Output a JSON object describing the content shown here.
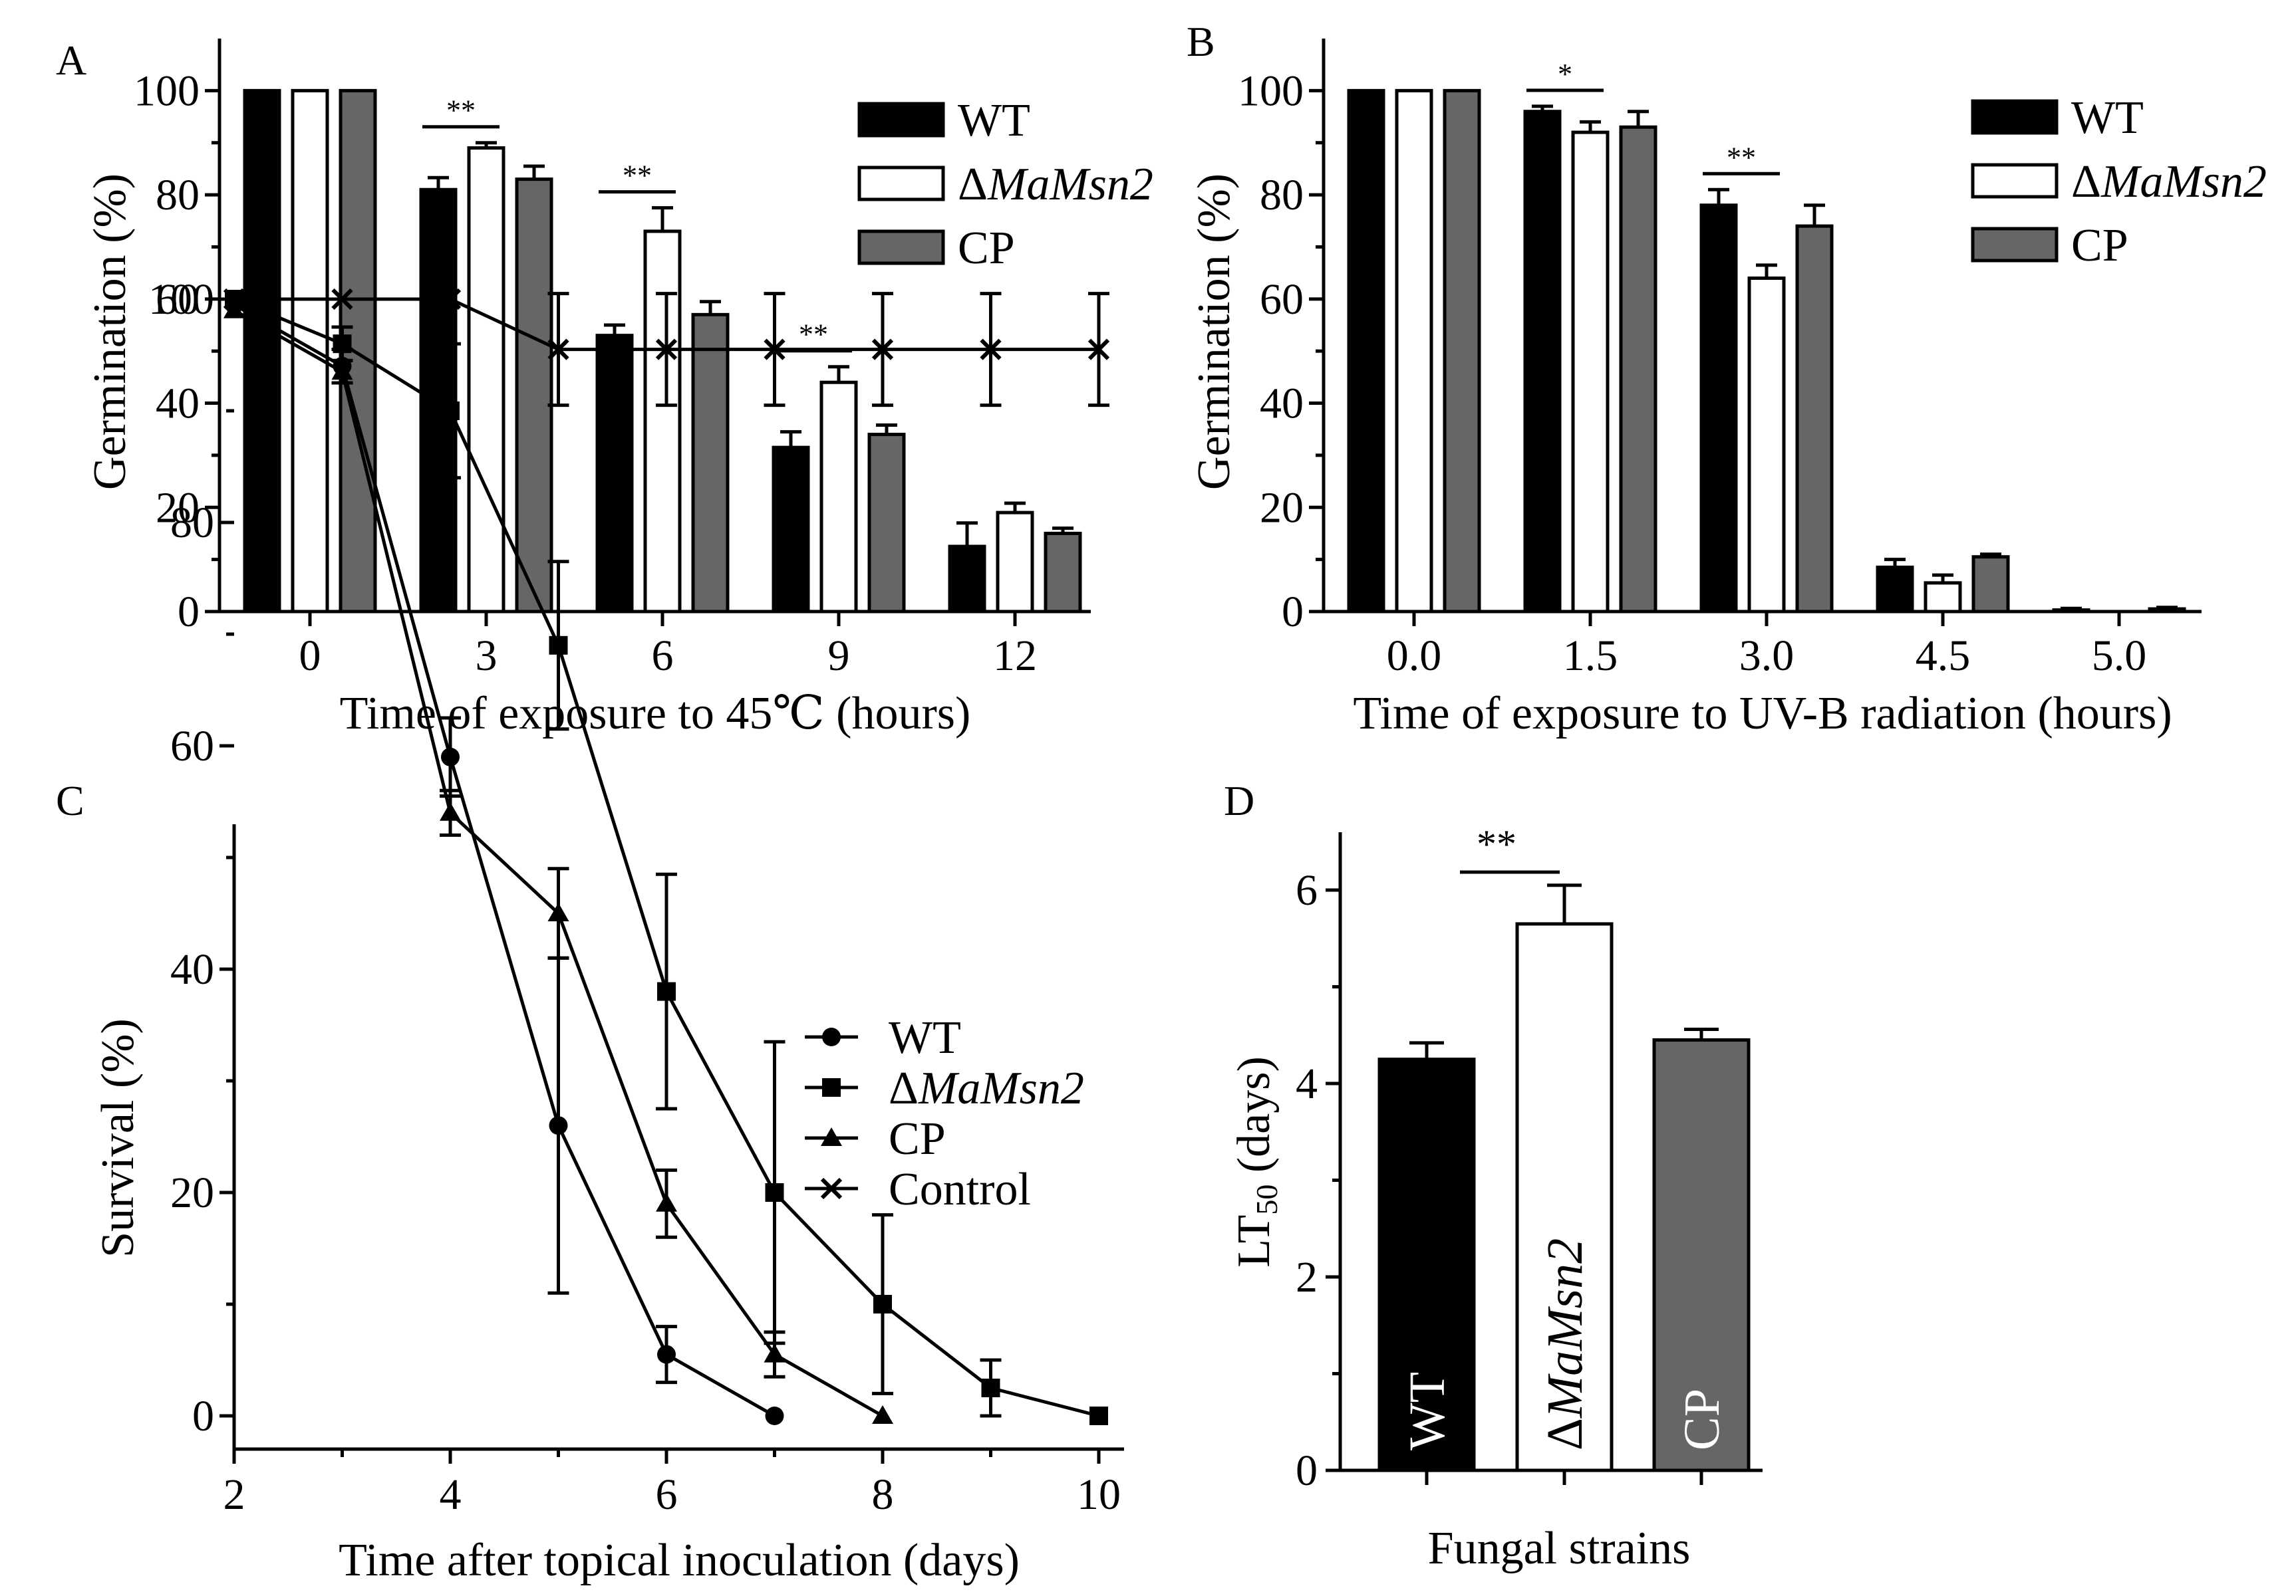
{
  "colors": {
    "wt": "#000000",
    "mutant": "#ffffff",
    "cp": "#666666",
    "axis": "#000000"
  },
  "chart_data": [
    {
      "panel": "A",
      "type": "bar",
      "xlabel": "Time of exposure to 45℃ (hours)",
      "ylabel": "Germination (%)",
      "categories": [
        "0",
        "3",
        "6",
        "9",
        "12"
      ],
      "ylim": [
        0,
        110
      ],
      "yticks": [
        "0",
        "20",
        "40",
        "60",
        "80",
        "100"
      ],
      "series": [
        {
          "name": "WT",
          "values": [
            100,
            81,
            53,
            31.5,
            12.5
          ],
          "errors": [
            0,
            2.3,
            2,
            3,
            4.5
          ]
        },
        {
          "name": "Δ",
          "name_italic": "MaMsn2",
          "values": [
            100,
            89,
            73,
            44,
            19
          ],
          "errors": [
            0,
            1,
            4.5,
            3,
            1.8
          ]
        },
        {
          "name": "CP",
          "values": [
            100,
            83,
            57,
            34,
            15
          ],
          "errors": [
            0,
            2.5,
            2.5,
            1.8,
            1
          ]
        }
      ],
      "significance": [
        {
          "category": "3",
          "label": "**"
        },
        {
          "category": "6",
          "label": "**"
        },
        {
          "category": "9",
          "label": "**"
        }
      ],
      "legend": "top-right"
    },
    {
      "panel": "B",
      "type": "bar",
      "xlabel": "Time of exposure to UV-B radiation (hours)",
      "ylabel": "Germination (%)",
      "categories": [
        "0.0",
        "1.5",
        "3.0",
        "4.5",
        "5.0"
      ],
      "ylim": [
        0,
        110
      ],
      "yticks": [
        "0",
        "20",
        "40",
        "60",
        "80",
        "100"
      ],
      "series": [
        {
          "name": "WT",
          "values": [
            100,
            96,
            78,
            8.5,
            0.3
          ],
          "errors": [
            0,
            1,
            3,
            1.5,
            0.3
          ]
        },
        {
          "name": "Δ",
          "name_italic": "MaMsn2",
          "values": [
            100,
            92,
            64,
            5.5,
            0
          ],
          "errors": [
            0,
            2,
            2.5,
            1.5,
            0
          ]
        },
        {
          "name": "CP",
          "values": [
            100,
            93,
            74,
            10.5,
            0.5
          ],
          "errors": [
            0,
            3,
            4,
            0.5,
            0.3
          ]
        }
      ],
      "significance": [
        {
          "category": "1.5",
          "label": "*"
        },
        {
          "category": "3.0",
          "label": "**"
        }
      ],
      "legend": "top-right"
    },
    {
      "panel": "C",
      "type": "line",
      "xlabel": "Time after topical inoculation (days)",
      "ylabel": "Survival (%)",
      "xlim": [
        2,
        10.4
      ],
      "ylim": [
        -6,
        108
      ],
      "xticks": [
        "2",
        "4",
        "6",
        "8",
        "10"
      ],
      "yticks": [
        "0",
        "20",
        "40",
        "60",
        "80",
        "100"
      ],
      "series": [
        {
          "name": "WT",
          "marker": "circle",
          "x": [
            2,
            3,
            4,
            5,
            6,
            7
          ],
          "y": [
            99.5,
            94,
            59,
            26,
            5.5,
            0
          ],
          "err": [
            0,
            1.5,
            3.5,
            15,
            2.5,
            0
          ]
        },
        {
          "name": "Δ",
          "name_italic": "MaMsn2",
          "marker": "square",
          "x": [
            2,
            3,
            4,
            5,
            6,
            7,
            8,
            9,
            10
          ],
          "y": [
            100,
            96,
            90,
            69,
            38,
            20,
            10,
            2.5,
            0
          ],
          "err": [
            0,
            1.5,
            6,
            7.5,
            10.5,
            13.5,
            8,
            2.5,
            0
          ]
        },
        {
          "name": "CP",
          "marker": "triangle",
          "x": [
            2,
            3,
            4,
            5,
            6,
            7,
            8
          ],
          "y": [
            99,
            93.5,
            54,
            45,
            19,
            5.5,
            0
          ],
          "err": [
            0,
            1,
            2,
            4,
            3,
            2,
            0
          ]
        },
        {
          "name": "Control",
          "marker": "cross",
          "x": [
            2,
            3,
            4,
            5,
            6,
            7,
            8,
            9,
            10
          ],
          "y": [
            100,
            100,
            100,
            95.5,
            95.5,
            95.5,
            95.5,
            95.5,
            95.5
          ],
          "err": [
            0,
            0,
            0,
            5,
            5,
            5,
            5,
            5,
            5
          ]
        }
      ],
      "legend": "center-right"
    },
    {
      "panel": "D",
      "type": "bar",
      "xlabel": "Fungal strains",
      "ylabel_main": "LT",
      "ylabel_sub": "50",
      "ylabel_tail": " (days)",
      "categories": [
        "WT",
        "Δ",
        "CP"
      ],
      "category_italic": [
        "",
        "MaMsn2",
        ""
      ],
      "values": [
        4.25,
        5.65,
        4.45
      ],
      "errors": [
        0.17,
        0.4,
        0.11
      ],
      "ylim": [
        0,
        6.6
      ],
      "yticks": [
        "0",
        "2",
        "4",
        "6"
      ],
      "significance": [
        {
          "from": "WT",
          "to": "Δ",
          "label": "**"
        }
      ]
    }
  ]
}
